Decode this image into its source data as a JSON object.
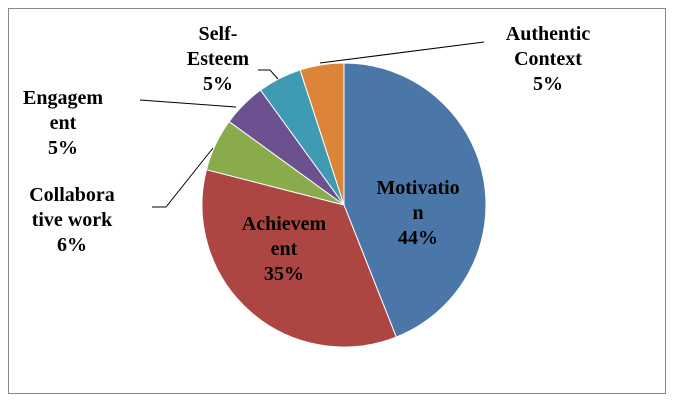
{
  "chart_data": {
    "type": "pie",
    "categories": [
      "Motivation",
      "Achievement",
      "Collaborative work",
      "Engagement",
      "Self-Esteem",
      "Authentic Context"
    ],
    "values": [
      44,
      35,
      6,
      5,
      5,
      5
    ],
    "value_labels": [
      "44%",
      "35%",
      "6%",
      "5%",
      "5%",
      "5%"
    ],
    "colors": [
      "#4a76a8",
      "#ad4542",
      "#8aab4c",
      "#6b5190",
      "#3f9ab4",
      "#dc8438"
    ]
  }
}
